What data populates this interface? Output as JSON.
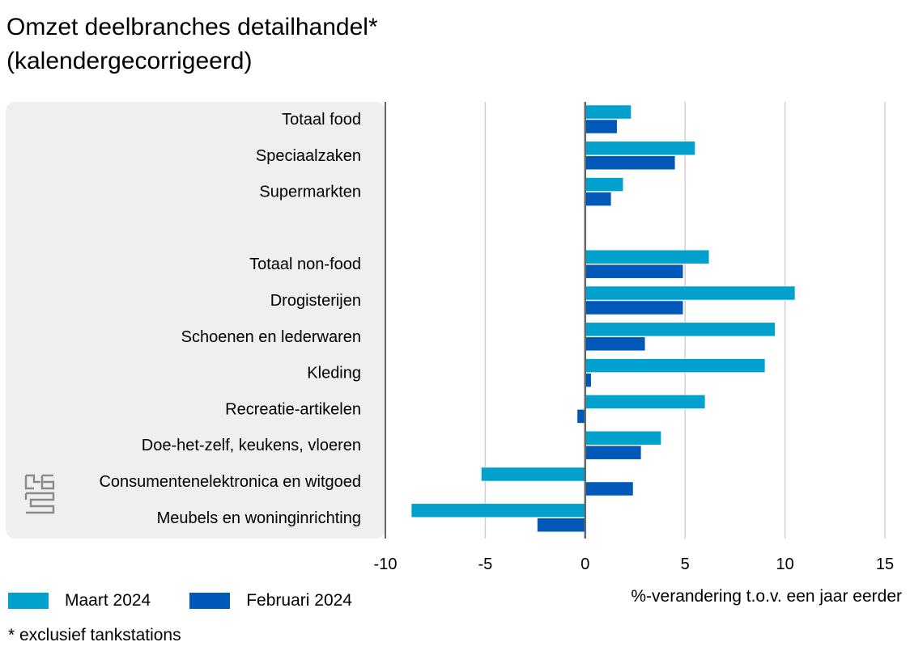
{
  "title": "Omzet deelbranches detailhandel*",
  "subtitle": "(kalendergecorrigeerd)",
  "footnote": "* exclusief tankstations",
  "logo_text": "cbs",
  "colors": {
    "maart": "#00a1cd",
    "februari": "#0058b8",
    "panel": "#efefef",
    "grid": "#cfcfcf",
    "axis": "#666666"
  },
  "chart_data": {
    "type": "bar",
    "orientation": "horizontal",
    "categories": [
      "Totaal food",
      "Speciaalzaken",
      "Supermarkten",
      "",
      "Totaal non-food",
      "Drogisterijen",
      "Schoenen en lederwaren",
      "Kleding",
      "Recreatie-artikelen",
      "Doe-het-zelf, keukens, vloeren",
      "Consumentenelektronica en witgoed",
      "Meubels en woninginrichting"
    ],
    "series": [
      {
        "name": "Maart 2024",
        "color": "#00a1cd",
        "values": [
          2.3,
          5.5,
          1.9,
          null,
          6.2,
          10.5,
          9.5,
          9.0,
          6.0,
          3.8,
          -5.2,
          -8.7
        ]
      },
      {
        "name": "Februari 2024",
        "color": "#0058b8",
        "values": [
          1.6,
          4.5,
          1.3,
          null,
          4.9,
          4.9,
          3.0,
          0.3,
          -0.4,
          2.8,
          2.4,
          -2.4
        ]
      }
    ],
    "xlim": [
      -10,
      15
    ],
    "xticks": [
      -10,
      -5,
      0,
      5,
      10,
      15
    ],
    "xlabel": "%-verandering t.o.v. een jaar eerder",
    "grid": true,
    "legend_position": "bottom-left"
  }
}
